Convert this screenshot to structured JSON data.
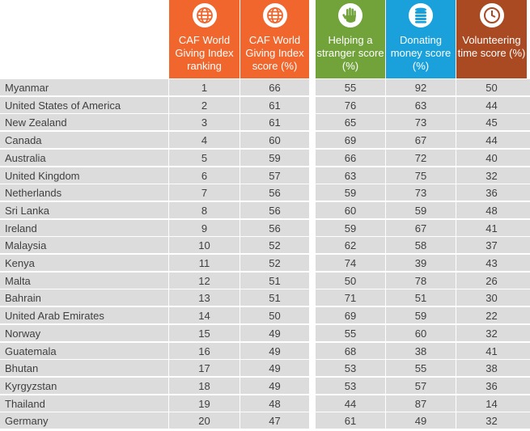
{
  "chart_data": {
    "type": "table",
    "columns": [
      {
        "key": "country",
        "label": ""
      },
      {
        "key": "ranking",
        "label": "CAF World Giving Index ranking",
        "color": "#f0662d",
        "icon": "globe-icon"
      },
      {
        "key": "score",
        "label": "CAF World Giving Index score (%)",
        "color": "#f0662d",
        "icon": "globe-icon"
      },
      {
        "key": "helping",
        "label": "Helping a stranger score (%)",
        "color": "#72a33b",
        "icon": "raised-hand-icon"
      },
      {
        "key": "donating",
        "label": "Donating money score (%)",
        "color": "#1aa1dc",
        "icon": "coin-stack-icon"
      },
      {
        "key": "volunteering",
        "label": "Volunteering time score (%)",
        "color": "#a94a22",
        "icon": "clock-icon"
      }
    ],
    "rows": [
      {
        "country": "Myanmar",
        "ranking": 1,
        "score": 66,
        "helping": 55,
        "donating": 92,
        "volunteering": 50
      },
      {
        "country": "United States of America",
        "ranking": 2,
        "score": 61,
        "helping": 76,
        "donating": 63,
        "volunteering": 44
      },
      {
        "country": "New Zealand",
        "ranking": 3,
        "score": 61,
        "helping": 65,
        "donating": 73,
        "volunteering": 45
      },
      {
        "country": "Canada",
        "ranking": 4,
        "score": 60,
        "helping": 69,
        "donating": 67,
        "volunteering": 44
      },
      {
        "country": "Australia",
        "ranking": 5,
        "score": 59,
        "helping": 66,
        "donating": 72,
        "volunteering": 40
      },
      {
        "country": "United Kingdom",
        "ranking": 6,
        "score": 57,
        "helping": 63,
        "donating": 75,
        "volunteering": 32
      },
      {
        "country": "Netherlands",
        "ranking": 7,
        "score": 56,
        "helping": 59,
        "donating": 73,
        "volunteering": 36
      },
      {
        "country": "Sri Lanka",
        "ranking": 8,
        "score": 56,
        "helping": 60,
        "donating": 59,
        "volunteering": 48
      },
      {
        "country": "Ireland",
        "ranking": 9,
        "score": 56,
        "helping": 59,
        "donating": 67,
        "volunteering": 41
      },
      {
        "country": "Malaysia",
        "ranking": 10,
        "score": 52,
        "helping": 62,
        "donating": 58,
        "volunteering": 37
      },
      {
        "country": "Kenya",
        "ranking": 11,
        "score": 52,
        "helping": 74,
        "donating": 39,
        "volunteering": 43
      },
      {
        "country": "Malta",
        "ranking": 12,
        "score": 51,
        "helping": 50,
        "donating": 78,
        "volunteering": 26
      },
      {
        "country": "Bahrain",
        "ranking": 13,
        "score": 51,
        "helping": 71,
        "donating": 51,
        "volunteering": 30
      },
      {
        "country": "United Arab Emirates",
        "ranking": 14,
        "score": 50,
        "helping": 69,
        "donating": 59,
        "volunteering": 22
      },
      {
        "country": "Norway",
        "ranking": 15,
        "score": 49,
        "helping": 55,
        "donating": 60,
        "volunteering": 32
      },
      {
        "country": "Guatemala",
        "ranking": 16,
        "score": 49,
        "helping": 68,
        "donating": 38,
        "volunteering": 41
      },
      {
        "country": "Bhutan",
        "ranking": 17,
        "score": 49,
        "helping": 53,
        "donating": 55,
        "volunteering": 38
      },
      {
        "country": "Kyrgyzstan",
        "ranking": 18,
        "score": 49,
        "helping": 53,
        "donating": 57,
        "volunteering": 36
      },
      {
        "country": "Thailand",
        "ranking": 19,
        "score": 48,
        "helping": 44,
        "donating": 87,
        "volunteering": 14
      },
      {
        "country": "Germany",
        "ranking": 20,
        "score": 47,
        "helping": 61,
        "donating": 49,
        "volunteering": 32
      }
    ]
  }
}
